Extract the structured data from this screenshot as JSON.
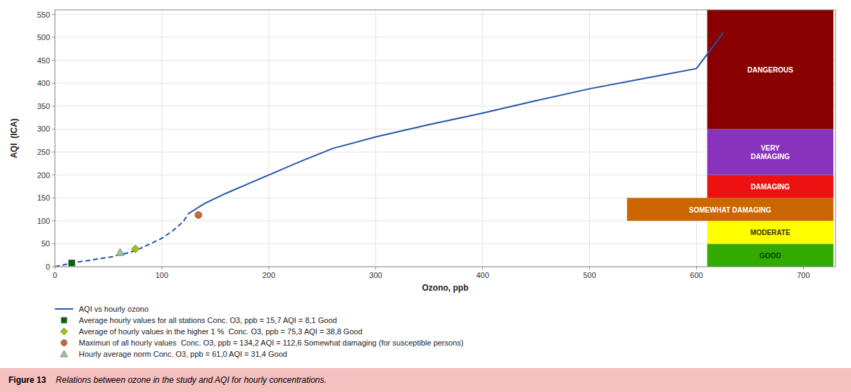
{
  "chart_data": {
    "type": "line",
    "xlabel": "Ozono, ppb",
    "ylabel": "AQI  (ICA)",
    "xlim": [
      0,
      730
    ],
    "ylim": [
      0,
      560
    ],
    "xticks": [
      0,
      100,
      200,
      300,
      400,
      500,
      600,
      700
    ],
    "yticks": [
      0,
      50,
      100,
      150,
      200,
      250,
      300,
      350,
      400,
      450,
      500,
      550
    ],
    "grid": true,
    "legend": "bottom",
    "series": [
      {
        "name": "AQI vs hourly ozono",
        "type": "line",
        "color": "#2255AA",
        "line_style": "solid",
        "dashed_until_x": 125,
        "x": [
          0,
          10,
          20,
          30,
          40,
          54,
          60,
          70,
          80,
          90,
          100,
          110,
          120,
          125,
          140,
          160,
          180,
          200,
          230,
          260,
          300,
          350,
          400,
          450,
          500,
          550,
          600,
          625
        ],
        "values": [
          0,
          5,
          10,
          13,
          17,
          22,
          26,
          31,
          40,
          51,
          62,
          78,
          98,
          116,
          138,
          160,
          180,
          200,
          230,
          258,
          283,
          310,
          335,
          362,
          388,
          410,
          432,
          510
        ]
      },
      {
        "name": "Average hourly values for all stations Conc. O3, ppb = 15,7 AQI = 8,1 Good",
        "type": "scatter",
        "marker": "square",
        "color": "#006600",
        "x": [
          15.7
        ],
        "values": [
          8.1
        ]
      },
      {
        "name": "Average of hourly values in the higher 1 %  Conc. O3, ppb = 75,3 AQI = 38,8 Good",
        "type": "scatter",
        "marker": "diamond",
        "color": "#99CC00",
        "x": [
          75.3
        ],
        "values": [
          38.8
        ]
      },
      {
        "name": "Maximun of all hourly values  Conc. O3, ppb = 134,2 AQI = 112,6 Somewhat damaging (for susceptible persons)",
        "type": "scatter",
        "marker": "circle",
        "color": "#CC6633",
        "x": [
          134.2
        ],
        "values": [
          112.6
        ]
      },
      {
        "name": "Hourly average norm Conc. O3, ppb = 61,0 AQI = 31,4 Good",
        "type": "scatter",
        "marker": "triangle",
        "color": "#99CC99",
        "x": [
          61.0
        ],
        "values": [
          31.4
        ]
      }
    ],
    "bands": [
      {
        "label": "GOOD",
        "ymin": 0,
        "ymax": 50,
        "x_start": 610,
        "x_end": 728,
        "color": "#33AA00",
        "text_color": "#004400"
      },
      {
        "label": "MODERATE",
        "ymin": 50,
        "ymax": 100,
        "x_start": 610,
        "x_end": 728,
        "color": "#FFFF00",
        "text_color": "#333300"
      },
      {
        "label": "SOMEWHAT DAMAGING",
        "ymin": 100,
        "ymax": 150,
        "x_start": 535,
        "x_end": 728,
        "color": "#CC6600",
        "text_color": "#FFFFFF"
      },
      {
        "label": "DAMAGING",
        "ymin": 150,
        "ymax": 200,
        "x_start": 610,
        "x_end": 728,
        "color": "#EE1111",
        "text_color": "#FFFFFF"
      },
      {
        "label": "VERY\nDAMAGING",
        "ymin": 200,
        "ymax": 300,
        "x_start": 610,
        "x_end": 728,
        "color": "#8833BB",
        "text_color": "#FFFFFF"
      },
      {
        "label": "DANGEROUS",
        "ymin": 300,
        "ymax": 560,
        "x_start": 610,
        "x_end": 728,
        "color": "#880000",
        "text_color": "#FFFFFF"
      }
    ],
    "caption_bold": "Figure 13",
    "caption": "Relations between ozone in the study and AQI for hourly concentrations."
  }
}
